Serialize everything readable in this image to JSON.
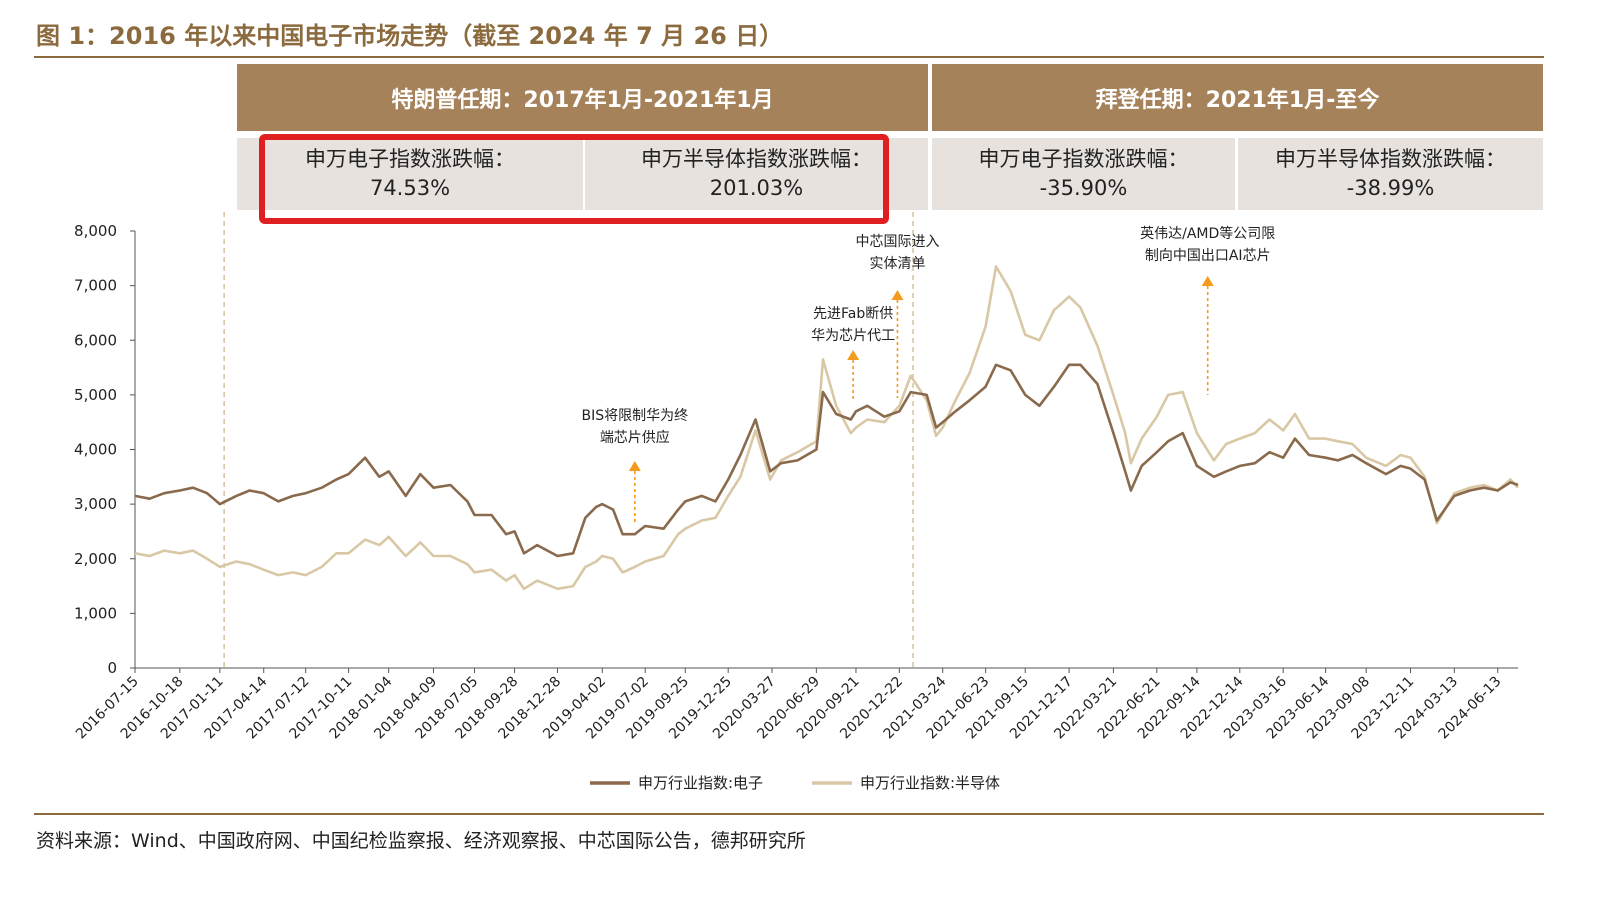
{
  "title": "图 1：2016 年以来中国电子市场走势（截至 2024 年 7 月 26 日）",
  "panels": {
    "trump_header": "特朗普任期：2017年1月-2021年1月",
    "biden_header": "拜登任期：2021年1月-至今",
    "stats": [
      {
        "label": "申万电子指数涨跌幅：",
        "value": "74.53%"
      },
      {
        "label": "申万半导体指数涨跌幅：",
        "value": "201.03%"
      },
      {
        "label": "申万电子指数涨跌幅：",
        "value": "-35.90%"
      },
      {
        "label": "申万半导体指数涨跌幅：",
        "value": "-38.99%"
      }
    ]
  },
  "source": "资料来源：Wind、中国政府网、中国纪检监察报、经济观察报、中芯国际公告，德邦研究所",
  "colors": {
    "brand": "#8b6a3e",
    "header": "#a5825a",
    "stat_bg": "#e8e2df",
    "highlight": "#e02020",
    "electronics": "#8a6a4c",
    "semiconductor": "#d9c8a5",
    "arrow": "#f59a1c"
  },
  "annotations": [
    {
      "date": "2019-06-10",
      "lines": [
        "BIS将限制华为终",
        "端芯片供应"
      ]
    },
    {
      "date": "2020-09-15",
      "lines": [
        "先进Fab断供",
        "华为芯片代工"
      ]
    },
    {
      "date": "2020-12-18",
      "lines": [
        "中芯国际进入",
        "实体清单"
      ]
    },
    {
      "date": "2022-10-07",
      "lines": [
        "英伟达/AMD等公司限",
        "制向中国出口AI芯片"
      ]
    }
  ],
  "chart_data": {
    "type": "line",
    "xlabel": "",
    "ylabel": "",
    "ylim": [
      0,
      8000
    ],
    "yticks": [
      0,
      1000,
      2000,
      3000,
      4000,
      5000,
      6000,
      7000,
      8000
    ],
    "ytick_labels": [
      "0",
      "1,000",
      "2,000",
      "3,000",
      "4,000",
      "5,000",
      "6,000",
      "7,000",
      "8,000"
    ],
    "xlim": [
      "2016-07-15",
      "2024-07-26"
    ],
    "xtick_labels": [
      "2016-07-15",
      "2016-10-18",
      "2017-01-11",
      "2017-04-14",
      "2017-07-12",
      "2017-10-11",
      "2018-01-04",
      "2018-04-09",
      "2018-07-05",
      "2018-09-28",
      "2018-12-28",
      "2019-04-02",
      "2019-07-02",
      "2019-09-25",
      "2019-12-25",
      "2020-03-27",
      "2020-06-29",
      "2020-09-21",
      "2020-12-22",
      "2021-03-24",
      "2021-06-23",
      "2021-09-15",
      "2021-12-17",
      "2022-03-21",
      "2022-06-21",
      "2022-09-14",
      "2022-12-14",
      "2023-03-16",
      "2023-06-14",
      "2023-09-08",
      "2023-12-11",
      "2024-03-13",
      "2024-06-13"
    ],
    "vlines": [
      "2017-01-20",
      "2021-01-20"
    ],
    "legend_position": "bottom",
    "series": [
      {
        "name": "申万行业指数:电子",
        "points": [
          [
            "2016-07-15",
            3150
          ],
          [
            "2016-08-15",
            3100
          ],
          [
            "2016-09-15",
            3200
          ],
          [
            "2016-10-18",
            3250
          ],
          [
            "2016-11-15",
            3300
          ],
          [
            "2016-12-15",
            3200
          ],
          [
            "2017-01-11",
            3000
          ],
          [
            "2017-02-15",
            3150
          ],
          [
            "2017-03-15",
            3250
          ],
          [
            "2017-04-14",
            3200
          ],
          [
            "2017-05-15",
            3050
          ],
          [
            "2017-06-15",
            3150
          ],
          [
            "2017-07-12",
            3200
          ],
          [
            "2017-08-15",
            3300
          ],
          [
            "2017-09-15",
            3450
          ],
          [
            "2017-10-11",
            3550
          ],
          [
            "2017-11-15",
            3850
          ],
          [
            "2017-12-15",
            3500
          ],
          [
            "2018-01-04",
            3600
          ],
          [
            "2018-02-09",
            3150
          ],
          [
            "2018-03-12",
            3550
          ],
          [
            "2018-04-09",
            3300
          ],
          [
            "2018-05-15",
            3350
          ],
          [
            "2018-06-20",
            3050
          ],
          [
            "2018-07-05",
            2800
          ],
          [
            "2018-08-10",
            2800
          ],
          [
            "2018-09-10",
            2450
          ],
          [
            "2018-09-28",
            2500
          ],
          [
            "2018-10-18",
            2100
          ],
          [
            "2018-11-15",
            2250
          ],
          [
            "2018-12-28",
            2050
          ],
          [
            "2019-01-30",
            2100
          ],
          [
            "2019-02-25",
            2750
          ],
          [
            "2019-03-20",
            2950
          ],
          [
            "2019-04-02",
            3000
          ],
          [
            "2019-04-25",
            2900
          ],
          [
            "2019-05-15",
            2450
          ],
          [
            "2019-06-10",
            2450
          ],
          [
            "2019-07-02",
            2600
          ],
          [
            "2019-08-10",
            2550
          ],
          [
            "2019-09-10",
            2900
          ],
          [
            "2019-09-25",
            3050
          ],
          [
            "2019-10-30",
            3150
          ],
          [
            "2019-11-28",
            3050
          ],
          [
            "2019-12-25",
            3450
          ],
          [
            "2020-01-20",
            3900
          ],
          [
            "2020-02-21",
            4550
          ],
          [
            "2020-03-23",
            3600
          ],
          [
            "2020-04-15",
            3750
          ],
          [
            "2020-05-20",
            3800
          ],
          [
            "2020-06-29",
            4000
          ],
          [
            "2020-07-13",
            5050
          ],
          [
            "2020-08-10",
            4650
          ],
          [
            "2020-09-10",
            4550
          ],
          [
            "2020-09-21",
            4700
          ],
          [
            "2020-10-15",
            4800
          ],
          [
            "2020-11-20",
            4600
          ],
          [
            "2020-12-22",
            4700
          ],
          [
            "2021-01-15",
            5050
          ],
          [
            "2021-02-18",
            5000
          ],
          [
            "2021-03-10",
            4400
          ],
          [
            "2021-03-24",
            4500
          ],
          [
            "2021-04-20",
            4700
          ],
          [
            "2021-05-20",
            4900
          ],
          [
            "2021-06-23",
            5150
          ],
          [
            "2021-07-15",
            5550
          ],
          [
            "2021-08-15",
            5450
          ],
          [
            "2021-09-15",
            5000
          ],
          [
            "2021-10-15",
            4800
          ],
          [
            "2021-11-15",
            5150
          ],
          [
            "2021-12-17",
            5550
          ],
          [
            "2022-01-10",
            5550
          ],
          [
            "2022-02-15",
            5200
          ],
          [
            "2022-03-21",
            4300
          ],
          [
            "2022-04-15",
            3600
          ],
          [
            "2022-04-27",
            3250
          ],
          [
            "2022-05-20",
            3700
          ],
          [
            "2022-06-21",
            3950
          ],
          [
            "2022-07-15",
            4150
          ],
          [
            "2022-08-15",
            4300
          ],
          [
            "2022-09-14",
            3700
          ],
          [
            "2022-10-20",
            3500
          ],
          [
            "2022-11-15",
            3600
          ],
          [
            "2022-12-14",
            3700
          ],
          [
            "2023-01-15",
            3750
          ],
          [
            "2023-02-15",
            3950
          ],
          [
            "2023-03-16",
            3850
          ],
          [
            "2023-04-10",
            4200
          ],
          [
            "2023-05-10",
            3900
          ],
          [
            "2023-06-14",
            3850
          ],
          [
            "2023-07-10",
            3800
          ],
          [
            "2023-08-10",
            3900
          ],
          [
            "2023-09-08",
            3750
          ],
          [
            "2023-10-20",
            3550
          ],
          [
            "2023-11-20",
            3700
          ],
          [
            "2023-12-11",
            3650
          ],
          [
            "2024-01-10",
            3450
          ],
          [
            "2024-02-05",
            2700
          ],
          [
            "2024-03-13",
            3150
          ],
          [
            "2024-04-15",
            3250
          ],
          [
            "2024-05-15",
            3300
          ],
          [
            "2024-06-13",
            3250
          ],
          [
            "2024-07-10",
            3400
          ],
          [
            "2024-07-26",
            3350
          ]
        ]
      },
      {
        "name": "申万行业指数:半导体",
        "points": [
          [
            "2016-07-15",
            2100
          ],
          [
            "2016-08-15",
            2050
          ],
          [
            "2016-09-15",
            2150
          ],
          [
            "2016-10-18",
            2100
          ],
          [
            "2016-11-15",
            2150
          ],
          [
            "2016-12-15",
            2000
          ],
          [
            "2017-01-11",
            1850
          ],
          [
            "2017-02-15",
            1950
          ],
          [
            "2017-03-15",
            1900
          ],
          [
            "2017-04-14",
            1800
          ],
          [
            "2017-05-15",
            1700
          ],
          [
            "2017-06-15",
            1750
          ],
          [
            "2017-07-12",
            1700
          ],
          [
            "2017-08-15",
            1850
          ],
          [
            "2017-09-15",
            2100
          ],
          [
            "2017-10-11",
            2100
          ],
          [
            "2017-11-15",
            2350
          ],
          [
            "2017-12-15",
            2250
          ],
          [
            "2018-01-04",
            2400
          ],
          [
            "2018-02-09",
            2050
          ],
          [
            "2018-03-12",
            2300
          ],
          [
            "2018-04-09",
            2050
          ],
          [
            "2018-05-15",
            2050
          ],
          [
            "2018-06-20",
            1900
          ],
          [
            "2018-07-05",
            1750
          ],
          [
            "2018-08-10",
            1800
          ],
          [
            "2018-09-10",
            1600
          ],
          [
            "2018-09-28",
            1700
          ],
          [
            "2018-10-18",
            1450
          ],
          [
            "2018-11-15",
            1600
          ],
          [
            "2018-12-28",
            1450
          ],
          [
            "2019-01-30",
            1500
          ],
          [
            "2019-02-25",
            1850
          ],
          [
            "2019-03-20",
            1950
          ],
          [
            "2019-04-02",
            2050
          ],
          [
            "2019-04-25",
            2000
          ],
          [
            "2019-05-15",
            1750
          ],
          [
            "2019-06-10",
            1850
          ],
          [
            "2019-07-02",
            1950
          ],
          [
            "2019-08-10",
            2050
          ],
          [
            "2019-09-10",
            2450
          ],
          [
            "2019-09-25",
            2550
          ],
          [
            "2019-10-30",
            2700
          ],
          [
            "2019-11-28",
            2750
          ],
          [
            "2019-12-25",
            3150
          ],
          [
            "2020-01-20",
            3500
          ],
          [
            "2020-02-21",
            4350
          ],
          [
            "2020-03-23",
            3450
          ],
          [
            "2020-04-15",
            3800
          ],
          [
            "2020-05-20",
            3950
          ],
          [
            "2020-06-29",
            4150
          ],
          [
            "2020-07-13",
            5650
          ],
          [
            "2020-08-10",
            4800
          ],
          [
            "2020-09-10",
            4300
          ],
          [
            "2020-09-21",
            4400
          ],
          [
            "2020-10-15",
            4550
          ],
          [
            "2020-11-20",
            4500
          ],
          [
            "2020-12-22",
            4800
          ],
          [
            "2021-01-15",
            5350
          ],
          [
            "2021-02-18",
            4900
          ],
          [
            "2021-03-10",
            4250
          ],
          [
            "2021-03-24",
            4400
          ],
          [
            "2021-04-20",
            4900
          ],
          [
            "2021-05-20",
            5400
          ],
          [
            "2021-06-23",
            6250
          ],
          [
            "2021-07-15",
            7350
          ],
          [
            "2021-08-15",
            6900
          ],
          [
            "2021-09-15",
            6100
          ],
          [
            "2021-10-15",
            6000
          ],
          [
            "2021-11-15",
            6550
          ],
          [
            "2021-12-17",
            6800
          ],
          [
            "2022-01-10",
            6600
          ],
          [
            "2022-02-15",
            5900
          ],
          [
            "2022-03-21",
            5000
          ],
          [
            "2022-04-15",
            4300
          ],
          [
            "2022-04-27",
            3750
          ],
          [
            "2022-05-20",
            4200
          ],
          [
            "2022-06-21",
            4600
          ],
          [
            "2022-07-15",
            5000
          ],
          [
            "2022-08-15",
            5050
          ],
          [
            "2022-09-14",
            4300
          ],
          [
            "2022-10-20",
            3800
          ],
          [
            "2022-11-15",
            4100
          ],
          [
            "2022-12-14",
            4200
          ],
          [
            "2023-01-15",
            4300
          ],
          [
            "2023-02-15",
            4550
          ],
          [
            "2023-03-16",
            4350
          ],
          [
            "2023-04-10",
            4650
          ],
          [
            "2023-05-10",
            4200
          ],
          [
            "2023-06-14",
            4200
          ],
          [
            "2023-07-10",
            4150
          ],
          [
            "2023-08-10",
            4100
          ],
          [
            "2023-09-08",
            3850
          ],
          [
            "2023-10-20",
            3700
          ],
          [
            "2023-11-20",
            3900
          ],
          [
            "2023-12-11",
            3850
          ],
          [
            "2024-01-10",
            3500
          ],
          [
            "2024-02-05",
            2650
          ],
          [
            "2024-03-13",
            3200
          ],
          [
            "2024-04-15",
            3300
          ],
          [
            "2024-05-15",
            3350
          ],
          [
            "2024-06-13",
            3250
          ],
          [
            "2024-07-10",
            3450
          ],
          [
            "2024-07-26",
            3300
          ]
        ]
      }
    ]
  }
}
